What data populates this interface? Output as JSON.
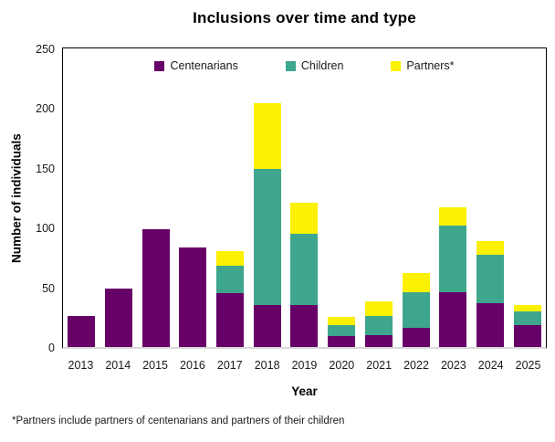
{
  "footnote": "*Partners include partners of centenarians and partners of their children",
  "chart_data": {
    "type": "bar",
    "stacked": true,
    "title": "Inclusions over time and type",
    "xlabel": "Year",
    "ylabel": "Number of individuals",
    "ylim": [
      0,
      250
    ],
    "y_ticks": [
      0,
      50,
      100,
      150,
      200,
      250
    ],
    "grid": false,
    "legend_position": "top-center-inside",
    "categories": [
      "2013",
      "2014",
      "2015",
      "2016",
      "2017",
      "2018",
      "2019",
      "2020",
      "2021",
      "2022",
      "2023",
      "2024",
      "2025"
    ],
    "series": [
      {
        "name": "Centenarians",
        "color": "#670067",
        "values": [
          26,
          49,
          99,
          83,
          45,
          35,
          35,
          9,
          10,
          16,
          46,
          37,
          18
        ]
      },
      {
        "name": "Children",
        "color": "#3EA68C",
        "values": [
          0,
          0,
          0,
          0,
          23,
          114,
          60,
          9,
          16,
          30,
          56,
          40,
          12
        ]
      },
      {
        "name": "Partners*",
        "color": "#FCF003",
        "values": [
          0,
          0,
          0,
          0,
          12,
          55,
          26,
          7,
          12,
          16,
          15,
          12,
          5
        ]
      }
    ]
  }
}
